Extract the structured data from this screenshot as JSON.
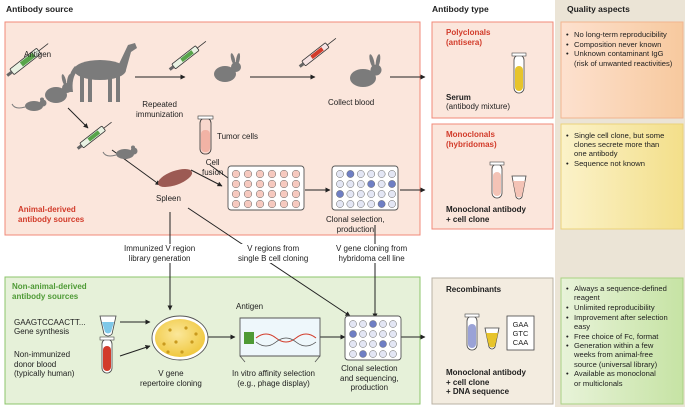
{
  "headers": {
    "source": "Antibody source",
    "type": "Antibody type",
    "quality": "Quality aspects"
  },
  "animal": {
    "antigen": "Antigen",
    "repeated": "Repeated\nimmunization",
    "collect": "Collect blood",
    "tumor": "Tumor cells",
    "spleen": "Spleen",
    "fusion": "Cell\nfusion",
    "clonal": "Clonal selection,\nproduction",
    "section": "Animal-derived\nantibody sources"
  },
  "transitions": {
    "immunized": "Immunized V region\nlibrary generation",
    "single_b": "V regions from\nsingle B cell cloning",
    "hybridoma": "V gene cloning from\nhybridoma cell line"
  },
  "nonanimal": {
    "section": "Non-animal-derived\nantibody sources",
    "sequence": "GAAGTCCAACTT...",
    "gene_synthesis": "Gene synthesis",
    "donor": "Non-immunized\ndonor blood\n(typically human)",
    "antigen": "Antigen",
    "repertoire": "V gene\nrepertoire cloning",
    "invitro": "In vitro affinity selection\n(e.g., phage display)",
    "clonal_seq": "Clonal selection\nand sequencing,\nproduction"
  },
  "types": {
    "poly_title": "Polyclonals\n(antisera)",
    "serum": "Serum",
    "serum_sub": "(antibody mixture)",
    "mono_title": "Monoclonals\n(hybridomas)",
    "mono_result": "Monoclonal antibody\n+ cell clone",
    "rec_title": "Recombinants",
    "rec_result": "Monoclonal antibody\n+ cell clone\n+ DNA sequence",
    "codons": [
      "GAA",
      "GTC",
      "CAA"
    ]
  },
  "quality": {
    "poly": [
      "No long-term reproducibility",
      "Composition never known",
      "Unknown contaminant IgG\n(risk of unwanted reactivities)"
    ],
    "mono": [
      "Single cell clone, but some\nclones secrete more than\none antibody",
      "Sequence not known"
    ],
    "rec": [
      "Always a sequence-defined\nreagent",
      "Unlimited reproducibility",
      "Improvement after selection\neasy",
      "Free choice of Fc, format",
      "Generation within a few\nweeks from animal-free\nsource (universal library)",
      "Available as monoclonal\nor multiclonals"
    ]
  },
  "colors": {
    "pink_bg": "#fbe6dc",
    "pink_border": "#f08a78",
    "green_bg": "#e6f1d9",
    "green_border": "#8cc56b",
    "quality_col": "#ebe4d6",
    "red_accent": "#d23b2a",
    "green_accent": "#4e9a35"
  }
}
